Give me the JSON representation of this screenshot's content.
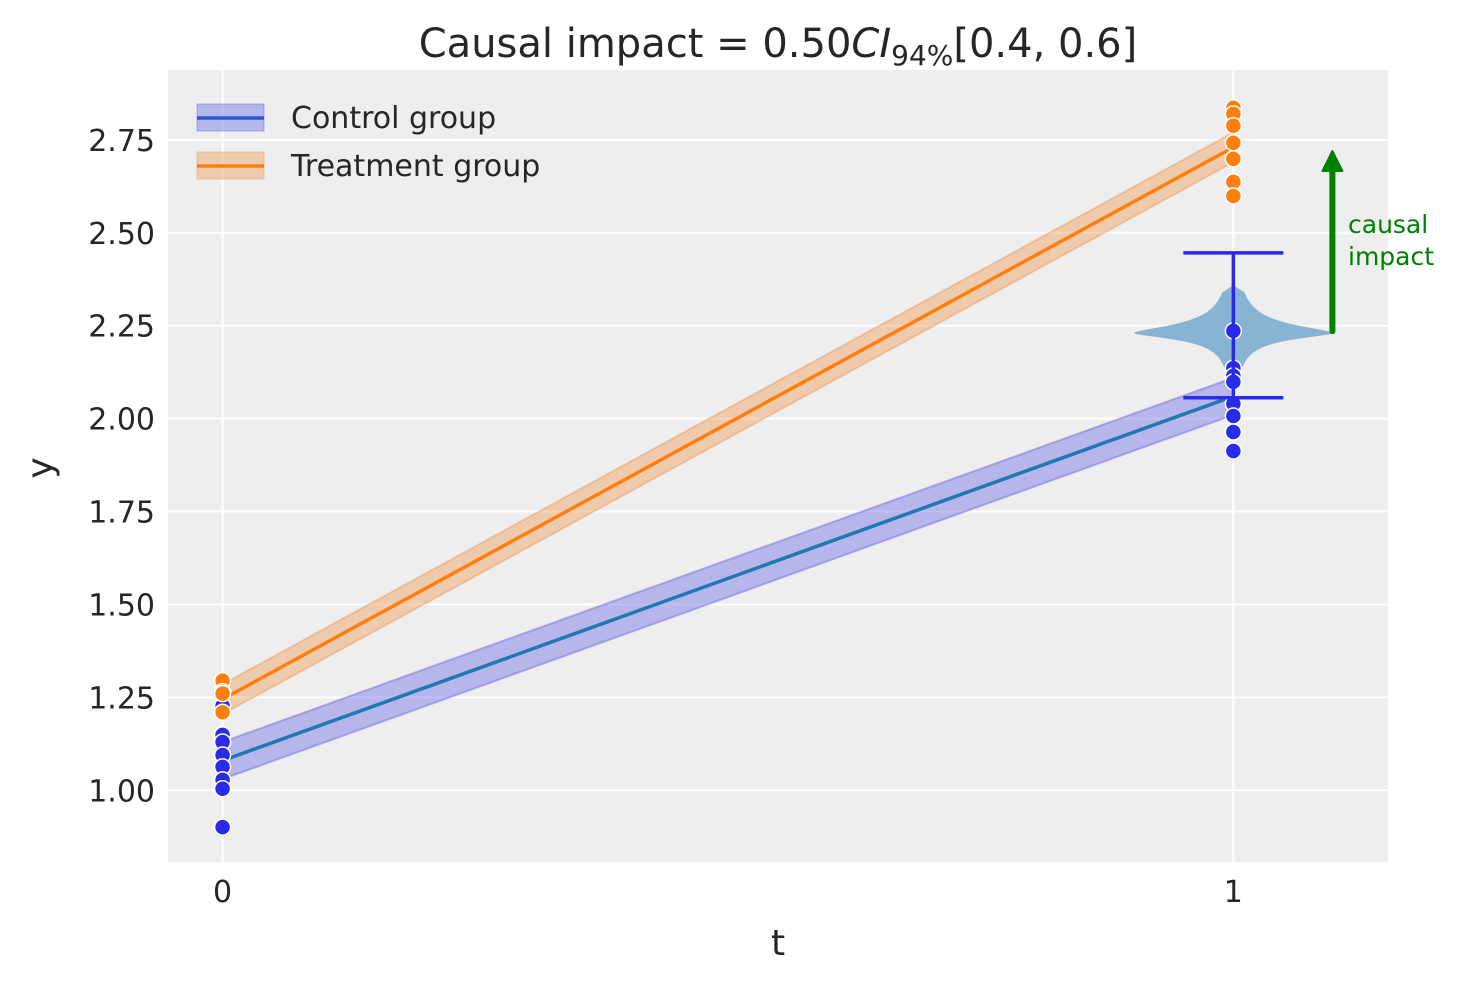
{
  "chart_data": {
    "type": "scatter",
    "title": {
      "prefix": "Causal impact = 0.50",
      "ci": "CI",
      "sub": "94%",
      "suffix": "[0.4, 0.6]"
    },
    "xlabel": "t",
    "ylabel": "y",
    "xlim": [
      -0.054,
      1.153
    ],
    "ylim": [
      0.807,
      2.938
    ],
    "xticks": [
      0,
      1
    ],
    "xtick_labels": [
      "0",
      "1"
    ],
    "yticks": [
      1.0,
      1.25,
      1.5,
      1.75,
      2.0,
      2.25,
      2.5,
      2.75
    ],
    "ytick_labels": [
      "1.00",
      "1.25",
      "1.50",
      "1.75",
      "2.00",
      "2.25",
      "2.50",
      "2.75"
    ],
    "grid": true,
    "legend_position": "top-left",
    "series": [
      {
        "name": "Control group",
        "line_color": "#1f77b4",
        "band_color": "#7070e6",
        "point_color": "#2a2aeb",
        "line": {
          "x": [
            0,
            1
          ],
          "y": [
            1.08,
            2.06
          ]
        },
        "band": {
          "lower": [
            1.03,
            2.01
          ],
          "upper": [
            1.13,
            2.11
          ]
        },
        "points": {
          "t0": [
            1.227,
            1.149,
            1.13,
            1.095,
            1.063,
            1.028,
            1.004,
            0.901
          ],
          "t1": [
            2.236,
            2.136,
            2.115,
            2.099,
            2.04,
            2.007,
            1.964,
            1.913
          ]
        }
      },
      {
        "name": "Treatment group",
        "line_color": "#ff7f0e",
        "band_color": "#f0a060",
        "point_color": "#ff7f0e",
        "line": {
          "x": [
            0,
            1
          ],
          "y": [
            1.245,
            2.73
          ]
        },
        "band": {
          "lower": [
            1.205,
            2.69
          ],
          "upper": [
            1.285,
            2.77
          ]
        },
        "points": {
          "t0": [
            1.295,
            1.265,
            1.26,
            1.21
          ],
          "t1": [
            2.836,
            2.82,
            2.788,
            2.742,
            2.699,
            2.637,
            2.599
          ]
        }
      }
    ],
    "counterfactual_violin": {
      "x": 1,
      "mode": 2.23,
      "min": 2.12,
      "max": 2.36,
      "color": "#82afd0"
    },
    "counterfactual_errorbar": {
      "x": 1,
      "low": 2.056,
      "high": 2.446,
      "color": "#2a2aeb"
    },
    "annotation": {
      "text_line1": "causal",
      "text_line2": "impact",
      "x": 1.098,
      "y_from": 2.235,
      "y_to": 2.72,
      "color": "#008000"
    }
  }
}
